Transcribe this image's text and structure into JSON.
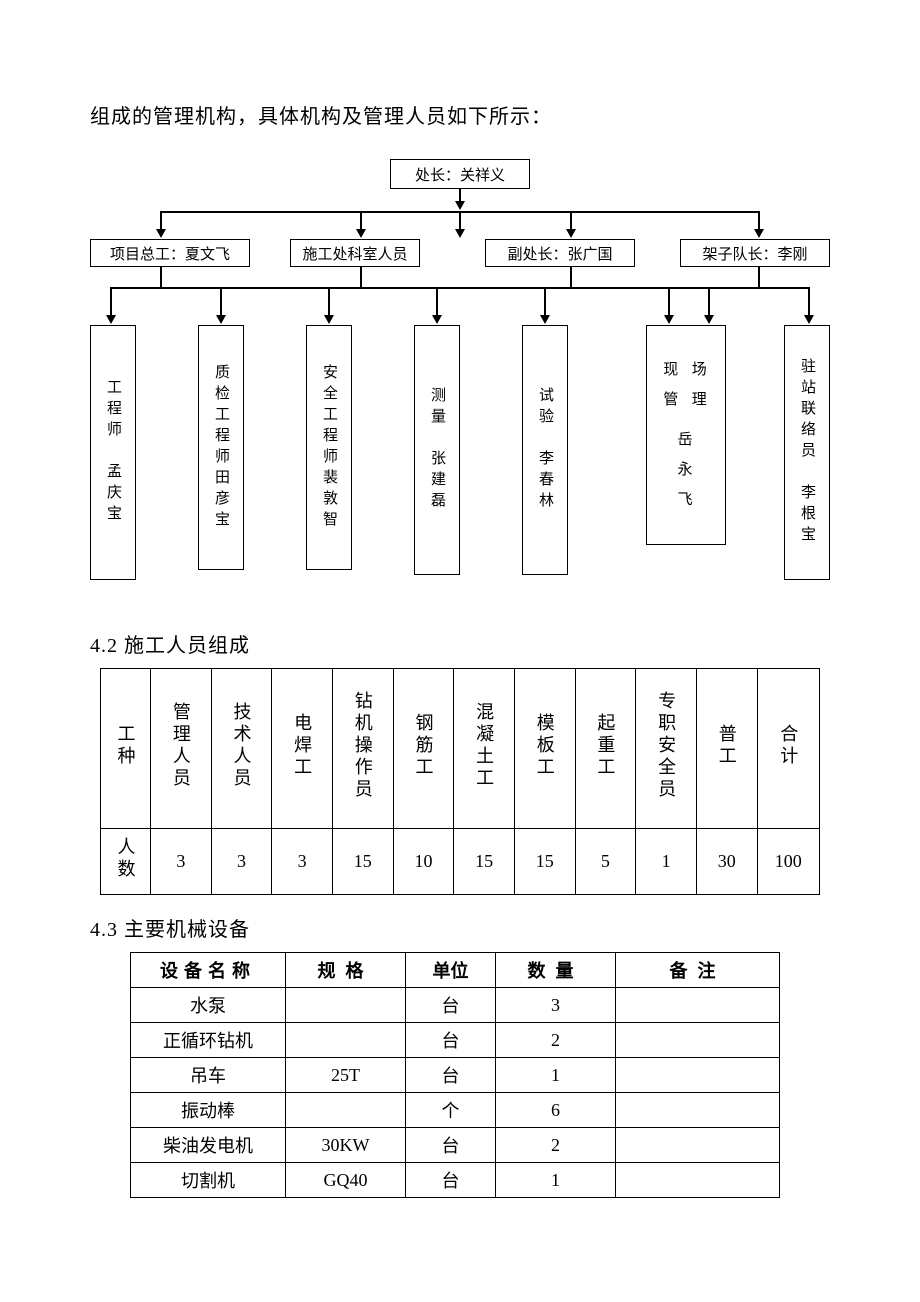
{
  "intro": "组成的管理机构，具体机构及管理人员如下所示：",
  "org": {
    "top": "处长：关祥义",
    "level2": [
      "项目总工：夏文飞",
      "施工处科室人员",
      "副处长：张广国",
      "架子队长：李刚"
    ],
    "bottom": [
      {
        "role": "工程师",
        "name": "孟庆宝"
      },
      {
        "role": "质检工程师",
        "name": "田彦宝"
      },
      {
        "role": "安全工程师",
        "name": "裴敦智"
      },
      {
        "role": "测量",
        "name": "张建磊"
      },
      {
        "role": "试验",
        "name": "李春林"
      },
      {
        "role": "现场管理",
        "name": "岳永飞"
      },
      {
        "role": "驻站联络员",
        "name": "李根宝"
      }
    ]
  },
  "sections": {
    "personnel_heading": "4.2 施工人员组成",
    "equipment_heading": "4.3 主要机械设备"
  },
  "personnel": {
    "row_labels": [
      "工种",
      "人数"
    ],
    "columns": [
      "管理人员",
      "技术人员",
      "电焊工",
      "钻机操作员",
      "钢筋工",
      "混凝土工",
      "模板工",
      "起重工",
      "专职安全员",
      "普工",
      "合计"
    ],
    "counts": [
      "3",
      "3",
      "3",
      "15",
      "10",
      "15",
      "15",
      "5",
      "1",
      "30",
      "100"
    ]
  },
  "equipment": {
    "headers": [
      "设备名称",
      "规格",
      "单位",
      "数量",
      "备注"
    ],
    "rows": [
      {
        "name": "水泵",
        "spec": "",
        "unit": "台",
        "qty": "3",
        "remark": ""
      },
      {
        "name": "正循环钻机",
        "spec": "",
        "unit": "台",
        "qty": "2",
        "remark": ""
      },
      {
        "name": "吊车",
        "spec": "25T",
        "unit": "台",
        "qty": "1",
        "remark": ""
      },
      {
        "name": "振动棒",
        "spec": "",
        "unit": "个",
        "qty": "6",
        "remark": ""
      },
      {
        "name": "柴油发电机",
        "spec": "30KW",
        "unit": "台",
        "qty": "2",
        "remark": ""
      },
      {
        "name": "切割机",
        "spec": "GQ40",
        "unit": "台",
        "qty": "1",
        "remark": ""
      }
    ]
  },
  "style": {
    "text_color": "#000000",
    "background_color": "#ffffff",
    "border_color": "#000000",
    "font_family": "SimSun",
    "body_font_size": 20,
    "table_font_size": 18,
    "org_font_size": 15
  }
}
